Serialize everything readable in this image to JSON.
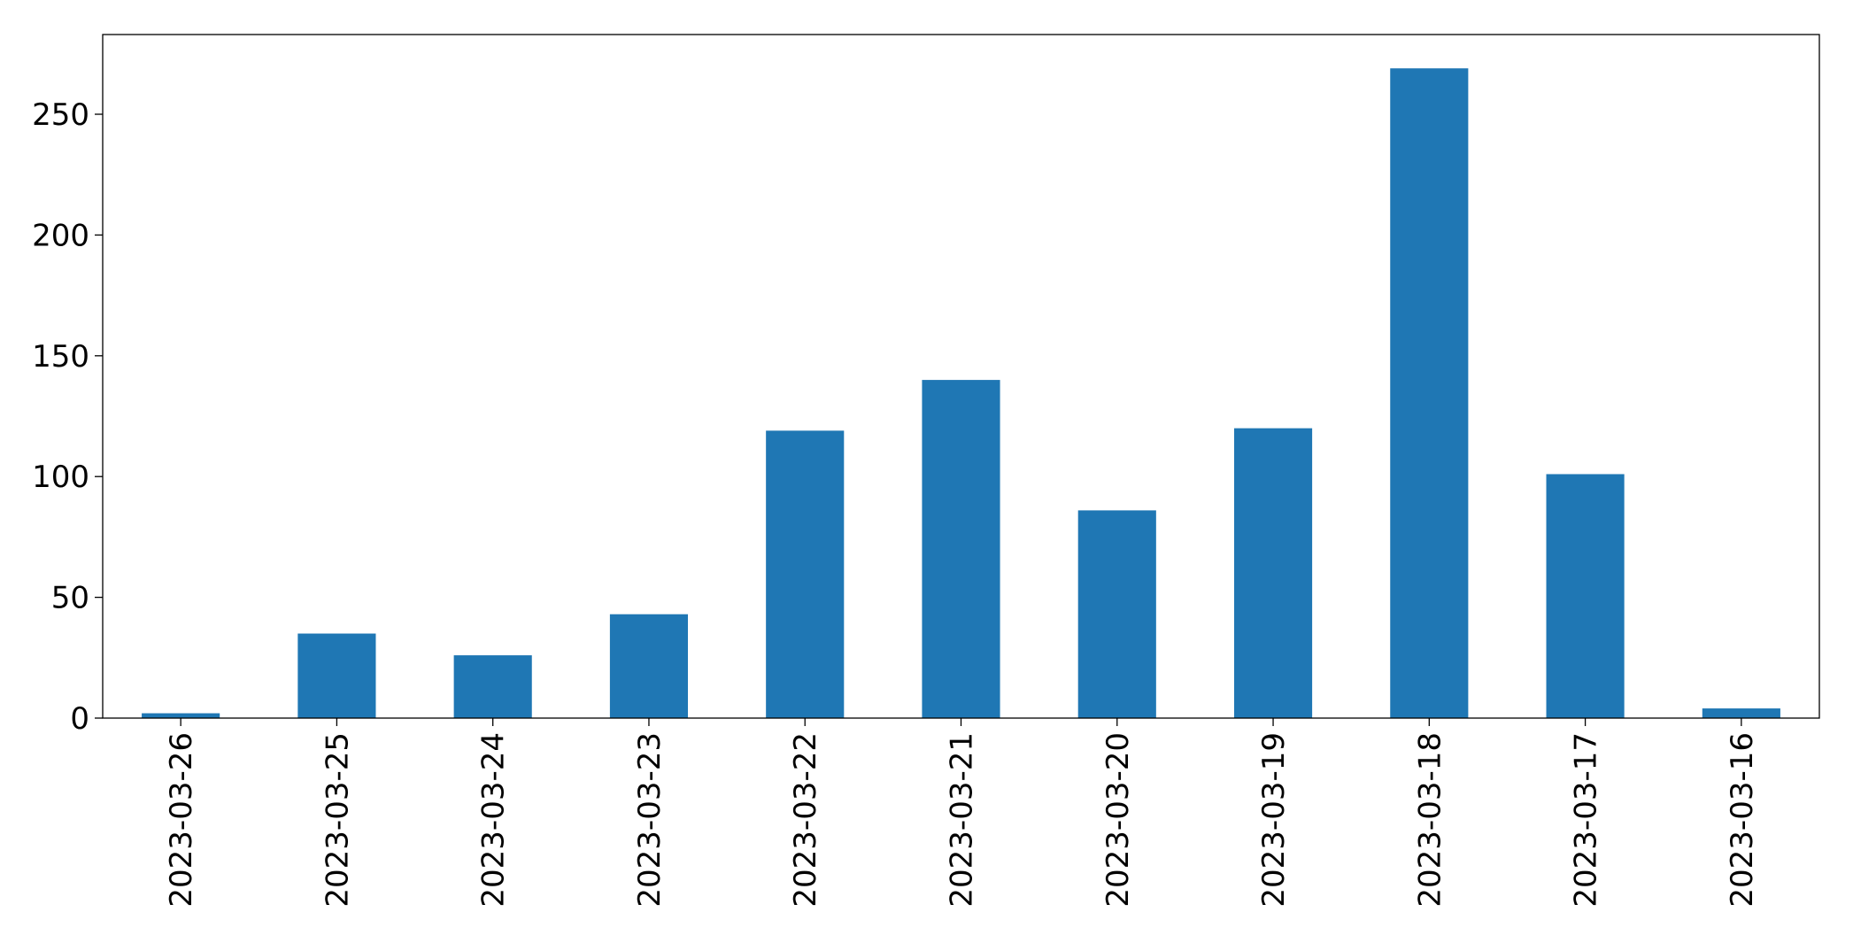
{
  "chart_data": {
    "type": "bar",
    "title": "",
    "xlabel": "",
    "ylabel": "",
    "categories": [
      "2023-03-26",
      "2023-03-25",
      "2023-03-24",
      "2023-03-23",
      "2023-03-22",
      "2023-03-21",
      "2023-03-20",
      "2023-03-19",
      "2023-03-18",
      "2023-03-17",
      "2023-03-16"
    ],
    "series": [
      {
        "values": [
          2,
          35,
          26,
          43,
          119,
          140,
          86,
          120,
          269,
          101,
          4
        ]
      }
    ],
    "ylim": [
      0,
      283
    ],
    "yticks": [
      0,
      50,
      100,
      150,
      200,
      250
    ],
    "grid": false,
    "legend": "none",
    "bar_color": "#1f77b4",
    "axis_color": "#000000"
  }
}
